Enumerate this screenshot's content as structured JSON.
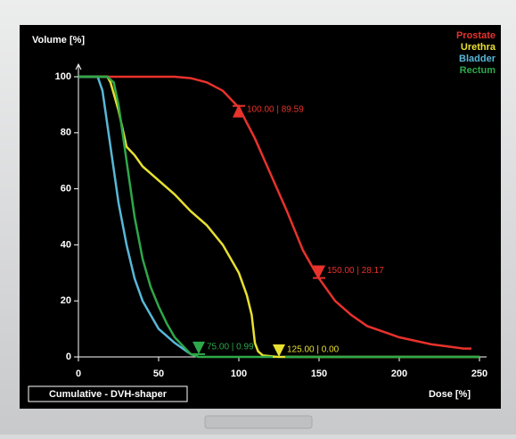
{
  "chart_data": {
    "type": "line",
    "y_label": "Volume [%]",
    "x_label": "Dose [%]",
    "mode_label": "Cumulative - DVH-shaper",
    "xlim": [
      0,
      250
    ],
    "ylim": [
      0,
      100
    ],
    "xticks": [
      0,
      50,
      100,
      150,
      200,
      250
    ],
    "yticks": [
      0,
      20,
      40,
      60,
      80,
      100
    ],
    "series": [
      {
        "name": "Prostate",
        "color": "#e8322c",
        "x": [
          0,
          60,
          70,
          80,
          90,
          100,
          110,
          120,
          130,
          140,
          150,
          160,
          170,
          180,
          190,
          200,
          220,
          240,
          245
        ],
        "values": [
          100,
          100,
          99.5,
          98,
          95,
          89,
          78,
          65,
          52,
          38,
          28,
          20,
          15,
          11,
          9,
          7,
          4.5,
          3,
          3
        ]
      },
      {
        "name": "Urethra",
        "color": "#e8e030",
        "x": [
          0,
          18,
          20,
          25,
          30,
          35,
          40,
          50,
          60,
          70,
          80,
          90,
          100,
          105,
          108,
          110,
          112,
          115,
          125,
          250
        ],
        "values": [
          100,
          100,
          98,
          88,
          75,
          72,
          68,
          63,
          58,
          52,
          47,
          40,
          30,
          22,
          15,
          5,
          2,
          0.5,
          0,
          0
        ]
      },
      {
        "name": "Bladder",
        "color": "#58b8d8",
        "x": [
          0,
          12,
          15,
          20,
          25,
          30,
          35,
          40,
          50,
          60,
          70,
          75
        ],
        "values": [
          100,
          100,
          95,
          75,
          55,
          40,
          28,
          20,
          10,
          5,
          1,
          0
        ]
      },
      {
        "name": "Rectum",
        "color": "#2ea84a",
        "x": [
          0,
          18,
          22,
          25,
          30,
          35,
          40,
          45,
          50,
          55,
          60,
          65,
          70,
          75,
          250
        ],
        "values": [
          100,
          100,
          98,
          90,
          70,
          50,
          35,
          25,
          18,
          12,
          7,
          4,
          1,
          0,
          0
        ]
      }
    ],
    "markers": [
      {
        "x": 100,
        "y": 89.59,
        "label": "100.00 | 89.59",
        "color": "#e8322c",
        "shape": "up"
      },
      {
        "x": 150,
        "y": 28.17,
        "label": "150.00 | 28.17",
        "color": "#e8322c",
        "shape": "down"
      },
      {
        "x": 75,
        "y": 0.99,
        "label": "75.00 | 0.99",
        "color": "#2ea84a",
        "shape": "down"
      },
      {
        "x": 125,
        "y": 0,
        "label": "125.00 | 0.00",
        "color": "#e8e030",
        "shape": "down"
      }
    ]
  }
}
